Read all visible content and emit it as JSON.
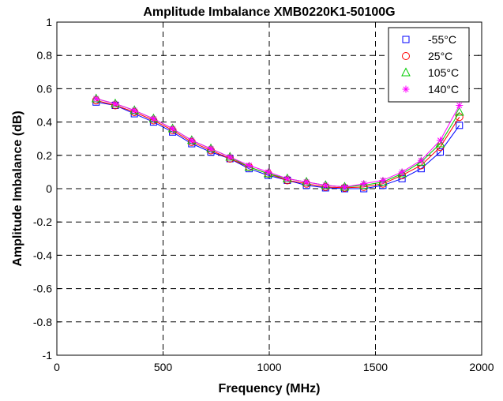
{
  "chart_data": {
    "type": "line",
    "title": "Amplitude Imbalance  XMB0220K1-50100G",
    "xlabel": "Frequency (MHz)",
    "ylabel": "Amplitude Imbalance (dB)",
    "xlim": [
      0,
      2000
    ],
    "ylim": [
      -1,
      1
    ],
    "xticks": [
      "0",
      "500",
      "1000",
      "1500",
      "2000"
    ],
    "yticks": [
      "-1",
      "-0.8",
      "-0.6",
      "-0.4",
      "-0.2",
      "0",
      "0.2",
      "0.4",
      "0.6",
      "0.8",
      "1"
    ],
    "grid": true,
    "legend_position": "top-right",
    "x": [
      185,
      275,
      365,
      455,
      545,
      635,
      725,
      815,
      905,
      995,
      1085,
      1175,
      1265,
      1355,
      1445,
      1535,
      1625,
      1715,
      1805,
      1895
    ],
    "series": [
      {
        "name": "-55°C",
        "color": "#0000ff",
        "marker": "square",
        "values": [
          0.52,
          0.5,
          0.45,
          0.4,
          0.34,
          0.27,
          0.22,
          0.18,
          0.12,
          0.08,
          0.05,
          0.02,
          0.005,
          0.0,
          0.0,
          0.02,
          0.06,
          0.12,
          0.22,
          0.38
        ]
      },
      {
        "name": "25°C",
        "color": "#ff0000",
        "marker": "circle",
        "values": [
          0.53,
          0.5,
          0.46,
          0.41,
          0.35,
          0.28,
          0.23,
          0.18,
          0.13,
          0.09,
          0.05,
          0.03,
          0.01,
          0.005,
          0.01,
          0.03,
          0.08,
          0.14,
          0.25,
          0.43
        ]
      },
      {
        "name": "105°C",
        "color": "#00cc00",
        "marker": "triangle",
        "values": [
          0.54,
          0.51,
          0.47,
          0.42,
          0.36,
          0.29,
          0.24,
          0.19,
          0.13,
          0.09,
          0.06,
          0.04,
          0.02,
          0.01,
          0.02,
          0.04,
          0.09,
          0.16,
          0.27,
          0.46
        ]
      },
      {
        "name": "140°C",
        "color": "#ff00ff",
        "marker": "star",
        "values": [
          0.54,
          0.51,
          0.47,
          0.42,
          0.36,
          0.29,
          0.24,
          0.19,
          0.14,
          0.1,
          0.06,
          0.04,
          0.02,
          0.01,
          0.03,
          0.05,
          0.1,
          0.17,
          0.29,
          0.5
        ]
      }
    ]
  }
}
